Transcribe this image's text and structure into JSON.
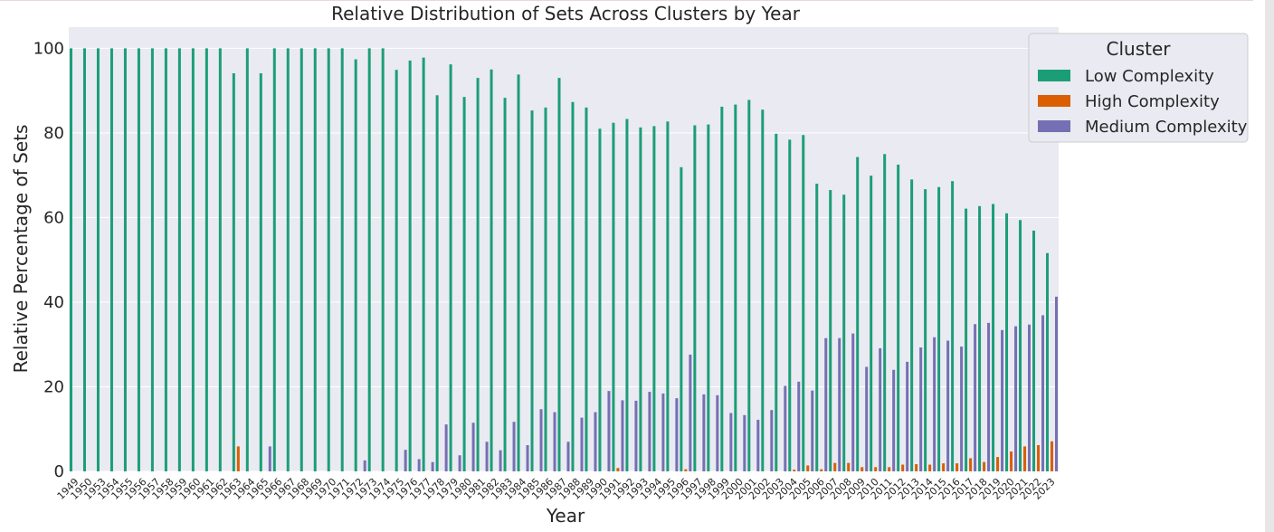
{
  "chart_data": {
    "type": "bar",
    "title": "Relative Distribution of Sets Across Clusters by Year",
    "xlabel": "Year",
    "ylabel": "Relative Percentage of Sets",
    "ylim": [
      0,
      105
    ],
    "yticks": [
      0,
      20,
      40,
      60,
      80,
      100
    ],
    "grid": true,
    "legend": {
      "title": "Cluster",
      "placement": "top-right"
    },
    "categories": [
      "1949",
      "1950",
      "1953",
      "1954",
      "1955",
      "1956",
      "1957",
      "1958",
      "1959",
      "1960",
      "1961",
      "1962",
      "1963",
      "1964",
      "1965",
      "1966",
      "1967",
      "1968",
      "1969",
      "1970",
      "1971",
      "1972",
      "1973",
      "1974",
      "1975",
      "1976",
      "1977",
      "1978",
      "1979",
      "1980",
      "1981",
      "1982",
      "1983",
      "1984",
      "1985",
      "1986",
      "1987",
      "1988",
      "1989",
      "1990",
      "1991",
      "1992",
      "1993",
      "1994",
      "1995",
      "1996",
      "1997",
      "1998",
      "1999",
      "2000",
      "2001",
      "2002",
      "2003",
      "2004",
      "2005",
      "2006",
      "2007",
      "2008",
      "2009",
      "2010",
      "2011",
      "2012",
      "2013",
      "2014",
      "2015",
      "2016",
      "2017",
      "2018",
      "2019",
      "2020",
      "2021",
      "2022",
      "2023"
    ],
    "series": [
      {
        "name": "Low Complexity",
        "color": "#1b9e77",
        "values": [
          100,
          100,
          100,
          100,
          100,
          100,
          100,
          100,
          100,
          100,
          100,
          100,
          94.1,
          100,
          94.1,
          100,
          100,
          100,
          100,
          100,
          100,
          97.4,
          100,
          100,
          94.9,
          97.1,
          97.8,
          88.9,
          96.2,
          88.5,
          93,
          95,
          88.3,
          93.8,
          85.3,
          86,
          93,
          87.3,
          86,
          81,
          82.4,
          83.3,
          81.3,
          81.6,
          82.7,
          71.9,
          81.8,
          82,
          86.2,
          86.7,
          87.8,
          85.5,
          79.8,
          78.4,
          79.5,
          68,
          66.5,
          65.4,
          74.3,
          69.9,
          75,
          72.5,
          69,
          66.7,
          67.2,
          68.6,
          62.1,
          62.7,
          63.2,
          61,
          59.4,
          56.9,
          51.6
        ]
      },
      {
        "name": "High Complexity",
        "color": "#d95f02",
        "values": [
          0,
          0,
          0,
          0,
          0,
          0,
          0,
          0,
          0,
          0,
          0,
          0,
          5.9,
          0,
          0,
          0,
          0,
          0,
          0,
          0,
          0,
          0,
          0,
          0,
          0,
          0,
          0,
          0,
          0,
          0,
          0,
          0,
          0,
          0,
          0,
          0,
          0,
          0,
          0,
          0,
          0.8,
          0,
          0,
          0,
          0,
          0.5,
          0,
          0,
          0,
          0,
          0,
          0,
          0,
          0.4,
          1.4,
          0.5,
          2,
          2,
          1,
          1,
          1,
          1.6,
          1.7,
          1.6,
          1.9,
          1.9,
          3.1,
          2.2,
          3.4,
          4.7,
          5.9,
          6.2,
          7.1
        ]
      },
      {
        "name": "Medium Complexity",
        "color": "#7570b3",
        "values": [
          0,
          0,
          0,
          0,
          0,
          0,
          0,
          0,
          0,
          0,
          0,
          0,
          0,
          0,
          5.9,
          0,
          0,
          0,
          0,
          0,
          0,
          2.6,
          0,
          0,
          5.1,
          2.9,
          2.2,
          11.1,
          3.8,
          11.5,
          7,
          5,
          11.7,
          6.2,
          14.7,
          14,
          7,
          12.7,
          14,
          19,
          16.8,
          16.7,
          18.8,
          18.4,
          17.3,
          27.6,
          18.2,
          18,
          13.8,
          13.3,
          12.2,
          14.5,
          20.2,
          21.2,
          19.1,
          31.5,
          31.5,
          32.6,
          24.7,
          29.1,
          24,
          25.9,
          29.3,
          31.7,
          30.9,
          29.5,
          34.8,
          35.1,
          33.4,
          34.3,
          34.7,
          36.9,
          41.3
        ]
      }
    ]
  }
}
